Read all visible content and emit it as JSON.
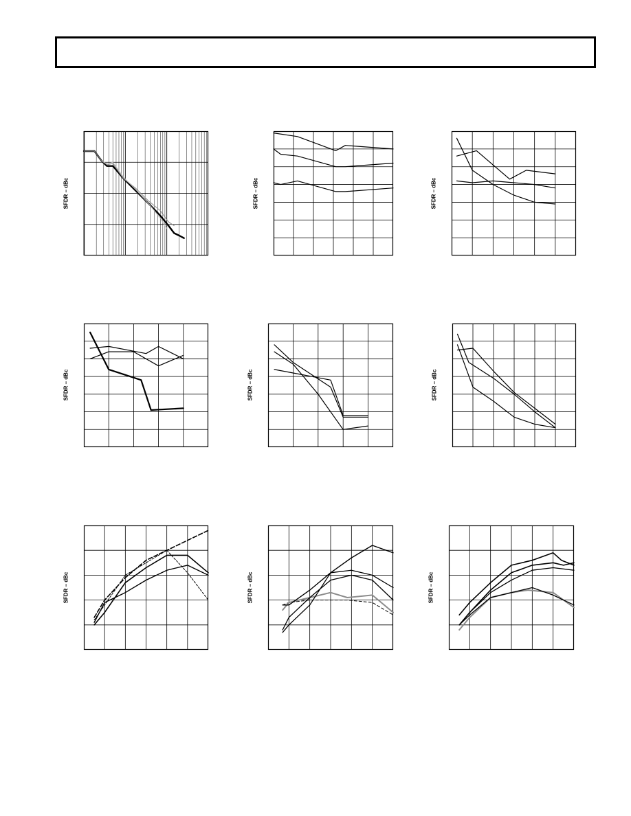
{
  "page": {
    "ylabel": "SFDR – dBc"
  },
  "colors": {
    "ink": "#000000",
    "grey": "#8c8c8c",
    "light": "#bbbbbb"
  },
  "chart_data": [
    {
      "type": "line",
      "ylabel": "SFDR – dBc",
      "log_x": true,
      "x_decades": [
        1,
        10,
        100,
        1000
      ],
      "ylim": [
        0,
        100
      ],
      "series": [
        {
          "name": "",
          "x": [
            1,
            1.8,
            2.7,
            3.6,
            5,
            9,
            18,
            36,
            70,
            110,
            150,
            200,
            260
          ],
          "y": [
            84,
            84,
            76,
            72,
            72,
            62,
            52,
            42,
            32,
            24,
            18,
            16,
            14
          ],
          "width": 2.4,
          "color": "#000000"
        },
        {
          "name": "",
          "x": [
            1,
            1.8,
            2.7,
            3.6,
            5,
            9,
            18,
            36,
            70,
            110,
            150
          ],
          "y": [
            84,
            84,
            76,
            73,
            74,
            62,
            54,
            44,
            36,
            27,
            24
          ],
          "width": 1,
          "color": "#8c8c8c"
        },
        {
          "name": "",
          "x": [
            2.7,
            3.6,
            5,
            9,
            18,
            36,
            70,
            100
          ],
          "y": [
            76,
            74,
            75,
            63,
            53,
            42,
            30,
            22
          ],
          "width": 1,
          "color": "#bbbbbb"
        }
      ]
    },
    {
      "type": "line",
      "ylabel": "SFDR – dBc",
      "xlim": [
        0,
        5
      ],
      "ylim": [
        0,
        7
      ],
      "series": [
        {
          "name": "",
          "x": [
            0,
            1,
            2.6,
            3.0,
            5
          ],
          "y": [
            6.9,
            6.7,
            5.9,
            6.2,
            6.0
          ],
          "width": 1.2,
          "color": "#000000"
        },
        {
          "name": "",
          "x": [
            0,
            0.3,
            1,
            2.6,
            3.0,
            5
          ],
          "y": [
            6.0,
            5.7,
            5.6,
            5.0,
            5.0,
            5.2
          ],
          "width": 1.2,
          "color": "#000000"
        },
        {
          "name": "",
          "x": [
            0,
            0.3,
            1,
            2.6,
            3.0,
            5
          ],
          "y": [
            4.1,
            4.0,
            4.2,
            3.6,
            3.6,
            3.8
          ],
          "width": 1.2,
          "color": "#000000"
        }
      ]
    },
    {
      "type": "line",
      "ylabel": "SFDR – dBc",
      "xlim": [
        0,
        6
      ],
      "ylim": [
        0,
        7
      ],
      "series": [
        {
          "name": "",
          "x": [
            0.25,
            1.2,
            2.8,
            3.6,
            5
          ],
          "y": [
            5.6,
            5.9,
            4.3,
            4.8,
            4.6
          ],
          "width": 1.2,
          "color": "#000000"
        },
        {
          "name": "",
          "x": [
            0.25,
            1,
            2,
            3,
            4,
            5
          ],
          "y": [
            4.2,
            4.1,
            4.2,
            4.1,
            4.0,
            3.8
          ],
          "width": 1.2,
          "color": "#000000"
        },
        {
          "name": "",
          "x": [
            0.25,
            1,
            2,
            3,
            4,
            5
          ],
          "y": [
            6.6,
            4.8,
            4.0,
            3.4,
            3.0,
            2.9
          ],
          "width": 1.2,
          "color": "#000000"
        }
      ]
    },
    {
      "type": "line",
      "ylabel": "SFDR – dBc",
      "xlim": [
        0,
        5
      ],
      "ylim": [
        0,
        7
      ],
      "series": [
        {
          "name": "",
          "x": [
            0.25,
            1,
            2.5,
            3,
            4
          ],
          "y": [
            5.6,
            5.7,
            5.3,
            5.7,
            5.0
          ],
          "width": 1.2,
          "color": "#000000"
        },
        {
          "name": "",
          "x": [
            0.25,
            1,
            2,
            3,
            4
          ],
          "y": [
            5.0,
            5.4,
            5.4,
            4.6,
            5.2
          ],
          "width": 1.2,
          "color": "#000000"
        },
        {
          "name": "",
          "x": [
            0.25,
            1,
            2.3,
            2.7,
            4
          ],
          "y": [
            6.5,
            4.4,
            3.8,
            2.1,
            2.2
          ],
          "width": 2.2,
          "color": "#000000"
        }
      ]
    },
    {
      "type": "line",
      "ylabel": "SFDR – dBc",
      "xlim": [
        0,
        5
      ],
      "ylim": [
        0,
        7
      ],
      "series": [
        {
          "name": "",
          "x": [
            0.25,
            1,
            2.5,
            3,
            4
          ],
          "y": [
            5.8,
            4.8,
            3.4,
            1.7,
            1.7
          ],
          "width": 1.2,
          "color": "#000000"
        },
        {
          "name": "",
          "x": [
            0.25,
            1,
            2,
            3,
            4
          ],
          "y": [
            5.4,
            4.7,
            3.0,
            1.0,
            1.2
          ],
          "width": 1.2,
          "color": "#000000"
        },
        {
          "name": "",
          "x": [
            0.25,
            1,
            2.5,
            3,
            4
          ],
          "y": [
            4.4,
            4.2,
            3.8,
            1.8,
            1.8
          ],
          "width": 1.2,
          "color": "#000000"
        }
      ]
    },
    {
      "type": "line",
      "ylabel": "SFDR – dBc",
      "xlim": [
        0,
        6
      ],
      "ylim": [
        0,
        7
      ],
      "series": [
        {
          "name": "",
          "x": [
            0.25,
            0.8,
            2,
            3,
            4,
            5
          ],
          "y": [
            6.4,
            4.8,
            3.9,
            3.0,
            2.0,
            1.1
          ],
          "width": 1.2,
          "color": "#000000"
        },
        {
          "name": "",
          "x": [
            0.25,
            1,
            2,
            3,
            4,
            5
          ],
          "y": [
            5.8,
            3.4,
            2.6,
            1.7,
            1.3,
            1.1
          ],
          "width": 1.2,
          "color": "#000000"
        },
        {
          "name": "",
          "x": [
            0.25,
            1,
            2,
            3,
            4,
            5
          ],
          "y": [
            5.5,
            5.6,
            4.3,
            3.1,
            2.2,
            1.3
          ],
          "width": 1.2,
          "color": "#000000"
        }
      ]
    },
    {
      "type": "line",
      "ylabel": "SFDR – dBc",
      "xlim": [
        0,
        6
      ],
      "ylim": [
        0,
        5
      ],
      "series": [
        {
          "name": "",
          "x": [
            0.5,
            1,
            2,
            3,
            4,
            5,
            6
          ],
          "y": [
            1.0,
            1.5,
            2.7,
            3.3,
            3.8,
            3.8,
            3.1
          ],
          "width": 1.6,
          "color": "#000000"
        },
        {
          "name": "",
          "x": [
            0.5,
            1,
            2,
            3,
            4,
            5,
            6
          ],
          "y": [
            1.2,
            1.8,
            3.0,
            3.5,
            4.0,
            3.1,
            2.0
          ],
          "width": 1,
          "color": "#000000",
          "dash": "3,2"
        },
        {
          "name": "",
          "x": [
            0.5,
            1,
            2,
            3,
            4,
            5,
            6
          ],
          "y": [
            1.1,
            1.9,
            2.3,
            2.8,
            3.2,
            3.4,
            3.0
          ],
          "width": 1.4,
          "color": "#000000"
        },
        {
          "name": "",
          "x": [
            0.5,
            1,
            2,
            3,
            4,
            5,
            6
          ],
          "y": [
            1.3,
            2.0,
            2.9,
            3.6,
            4.0,
            4.4,
            4.8
          ],
          "width": 1.6,
          "color": "#000000",
          "dash": "6,3"
        }
      ]
    },
    {
      "type": "line",
      "ylabel": "SFDR – dBc",
      "xlim": [
        0,
        6
      ],
      "ylim": [
        0,
        5
      ],
      "series": [
        {
          "name": "",
          "x": [
            0.7,
            1,
            2,
            3,
            3.8,
            5,
            6
          ],
          "y": [
            1.8,
            1.9,
            2.0,
            2.0,
            2.0,
            1.9,
            1.4
          ],
          "width": 1,
          "color": "#000000",
          "dash": "4,3"
        },
        {
          "name": "",
          "x": [
            0.7,
            1,
            2,
            3,
            3.8,
            5,
            6
          ],
          "y": [
            1.6,
            1.9,
            2.1,
            2.3,
            2.1,
            2.2,
            1.5
          ],
          "width": 2,
          "color": "#8c8c8c"
        },
        {
          "name": "",
          "x": [
            0.7,
            1,
            2,
            3,
            4,
            5,
            6
          ],
          "y": [
            0.8,
            1.3,
            2.1,
            2.8,
            3.0,
            2.8,
            2.0
          ],
          "width": 1.3,
          "color": "#000000"
        },
        {
          "name": "",
          "x": [
            0.7,
            1,
            2,
            3,
            4,
            5,
            6
          ],
          "y": [
            0.7,
            1.0,
            1.8,
            3.1,
            3.2,
            3.0,
            2.5
          ],
          "width": 1.3,
          "color": "#000000"
        },
        {
          "name": "",
          "x": [
            0.7,
            1,
            2,
            3,
            4,
            5,
            6
          ],
          "y": [
            1.8,
            1.8,
            2.4,
            3.1,
            3.7,
            4.2,
            3.9
          ],
          "width": 1.4,
          "color": "#000000"
        }
      ]
    },
    {
      "type": "line",
      "ylabel": "SFDR – dBc",
      "xlim": [
        0,
        6
      ],
      "ylim": [
        0,
        5
      ],
      "series": [
        {
          "name": "",
          "x": [
            0.5,
            1,
            2,
            3,
            3.8,
            5,
            6
          ],
          "y": [
            0.8,
            1.3,
            2.1,
            2.3,
            2.4,
            2.3,
            1.7
          ],
          "width": 2,
          "color": "#8c8c8c"
        },
        {
          "name": "",
          "x": [
            0.5,
            1,
            2,
            3,
            4,
            5,
            6
          ],
          "y": [
            1.0,
            1.4,
            2.1,
            2.3,
            2.5,
            2.2,
            1.8
          ],
          "width": 1.3,
          "color": "#000000"
        },
        {
          "name": "",
          "x": [
            0.5,
            1,
            2,
            3,
            4,
            5,
            6
          ],
          "y": [
            1.0,
            1.5,
            2.3,
            2.8,
            3.2,
            3.3,
            3.2
          ],
          "width": 1.3,
          "color": "#000000"
        },
        {
          "name": "",
          "x": [
            0.5,
            1,
            2,
            3,
            4,
            5,
            5.5,
            6
          ],
          "y": [
            1.0,
            1.5,
            2.4,
            3.1,
            3.4,
            3.5,
            3.4,
            3.5
          ],
          "width": 1.6,
          "color": "#000000"
        },
        {
          "name": "",
          "x": [
            0.5,
            1,
            2,
            3,
            4,
            5,
            5.4,
            6
          ],
          "y": [
            1.4,
            1.9,
            2.7,
            3.4,
            3.6,
            3.9,
            3.6,
            3.4
          ],
          "width": 1.6,
          "color": "#000000"
        }
      ]
    }
  ]
}
